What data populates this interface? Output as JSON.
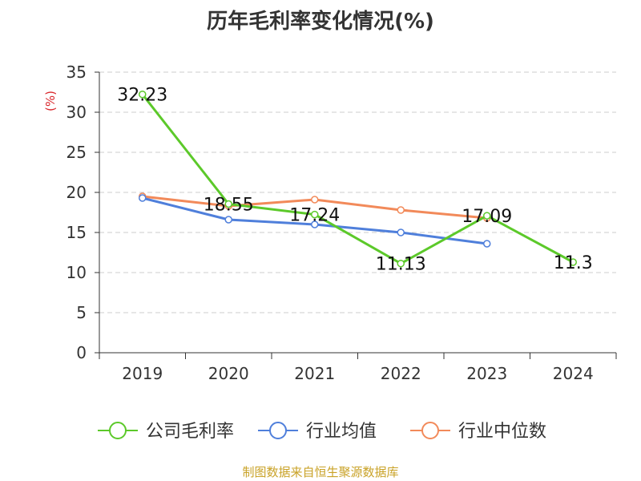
{
  "chart_data": {
    "type": "line",
    "title": "历年毛利率变化情况(%)",
    "ylabel": "(%)",
    "xlabel": "",
    "categories": [
      "2019",
      "2020",
      "2021",
      "2022",
      "2023",
      "2024"
    ],
    "ylim": [
      0,
      35
    ],
    "yticks": [
      0,
      5,
      10,
      15,
      20,
      25,
      30,
      35
    ],
    "grid": "horizontal dashed",
    "legend_position": "bottom",
    "series": [
      {
        "name": "公司毛利率",
        "color": "#5cc92a",
        "values": [
          32.23,
          18.55,
          17.24,
          11.13,
          17.09,
          11.3
        ],
        "labels": [
          "32.23",
          "18.55",
          "17.24",
          "11.13",
          "17.09",
          "11.3"
        ]
      },
      {
        "name": "行业均值",
        "color": "#4f7fdb",
        "values": [
          19.3,
          16.6,
          16.0,
          15.0,
          13.6,
          null
        ]
      },
      {
        "name": "行业中位数",
        "color": "#f28a5a",
        "values": [
          19.5,
          18.3,
          19.1,
          17.8,
          16.8,
          null
        ]
      }
    ]
  },
  "footer": "制图数据来自恒生聚源数据库"
}
